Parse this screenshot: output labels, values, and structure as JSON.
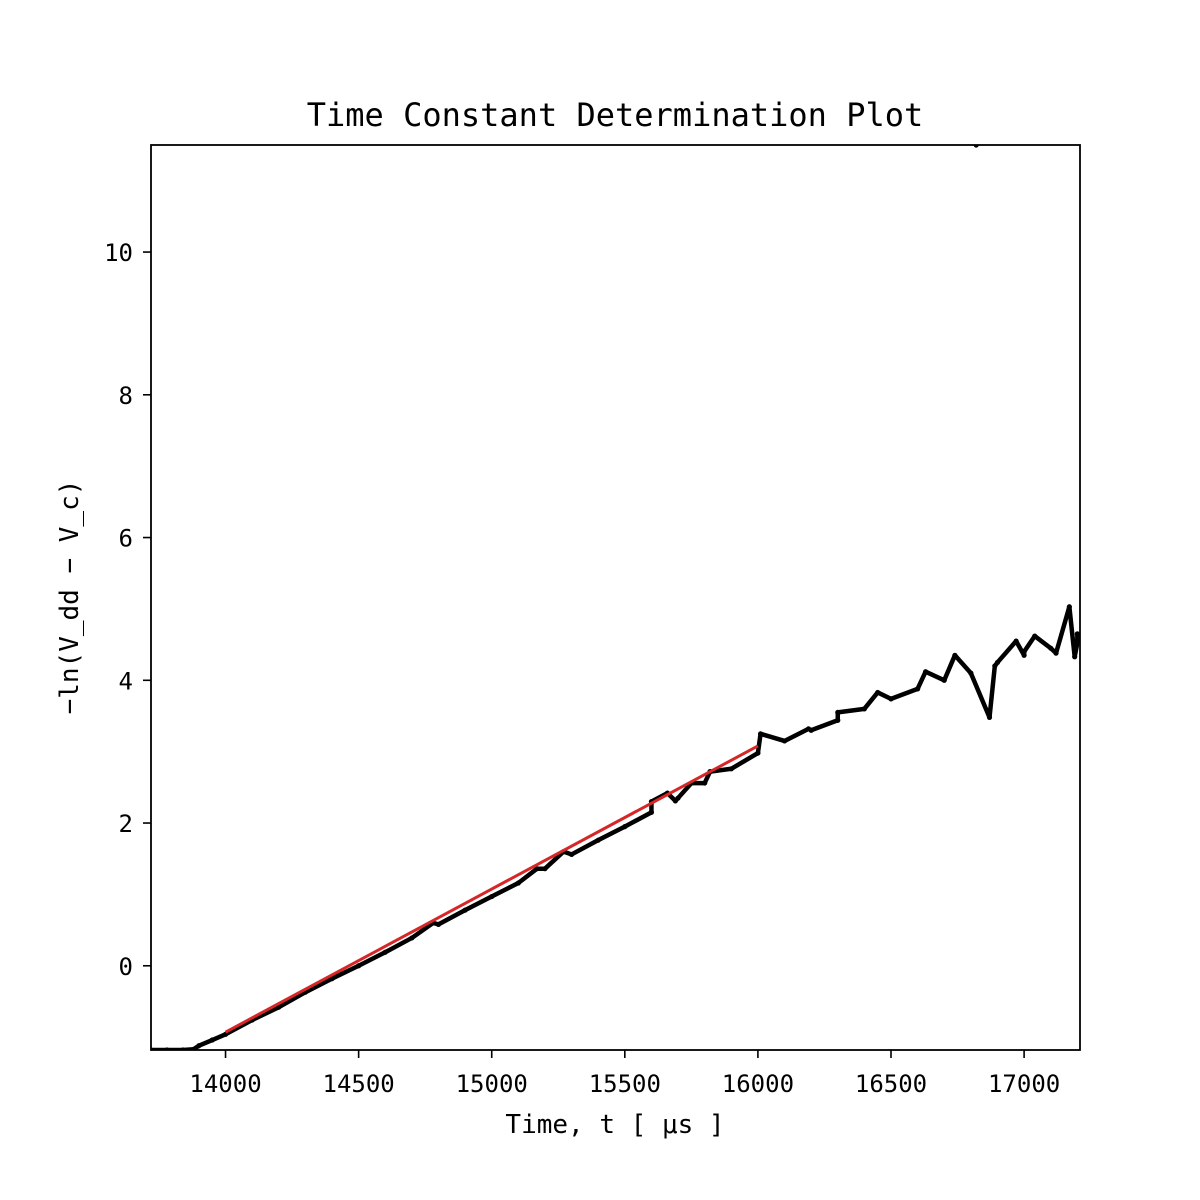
{
  "chart_data": {
    "type": "scatter",
    "title": "Time Constant Determination Plot",
    "xlabel": "Time, t [ μs ]",
    "ylabel": "−ln(V_dd − V_c)",
    "xlim": [
      13720,
      17210
    ],
    "ylim": [
      -1.18,
      11.5
    ],
    "xticks": [
      14000,
      14500,
      15000,
      15500,
      16000,
      16500,
      17000
    ],
    "xtick_labels": [
      "14000",
      "14500",
      "15000",
      "15500",
      "16000",
      "16500",
      "17000"
    ],
    "yticks": [
      0,
      2,
      4,
      6,
      8,
      10
    ],
    "ytick_labels": [
      "0",
      "2",
      "4",
      "6",
      "8",
      "10"
    ],
    "grid": false,
    "legend": "none",
    "series": [
      {
        "kind": "scatter",
        "color": "#000000",
        "points": [
          [
            13720,
            -1.18
          ],
          [
            13780,
            -1.18
          ],
          [
            13840,
            -1.18
          ],
          [
            13880,
            -1.17
          ],
          [
            13900,
            -1.12
          ],
          [
            13950,
            -1.04
          ],
          [
            14000,
            -0.96
          ],
          [
            14100,
            -0.76
          ],
          [
            14200,
            -0.58
          ],
          [
            14300,
            -0.37
          ],
          [
            14400,
            -0.18
          ],
          [
            14500,
            0.0
          ],
          [
            14600,
            0.19
          ],
          [
            14700,
            0.39
          ],
          [
            14800,
            0.58
          ],
          [
            14900,
            0.78
          ],
          [
            15000,
            0.97
          ],
          [
            15100,
            1.16
          ],
          [
            15200,
            1.36
          ],
          [
            15300,
            1.56
          ],
          [
            15400,
            1.76
          ],
          [
            15500,
            1.95
          ],
          [
            15600,
            2.15
          ],
          [
            15700,
            2.35
          ],
          [
            15800,
            2.56
          ],
          [
            15900,
            2.76
          ],
          [
            16000,
            2.98
          ],
          [
            16100,
            3.15
          ],
          [
            16200,
            3.3
          ],
          [
            16300,
            3.44
          ],
          [
            16400,
            3.6
          ],
          [
            16500,
            3.74
          ],
          [
            16600,
            3.88
          ],
          [
            16700,
            4.0
          ],
          [
            16800,
            4.1
          ],
          [
            16900,
            4.25
          ],
          [
            17000,
            4.35
          ],
          [
            17100,
            4.45
          ],
          [
            17200,
            4.52
          ],
          [
            14780,
            0.6
          ],
          [
            15170,
            1.36
          ],
          [
            15270,
            1.6
          ],
          [
            15600,
            2.3
          ],
          [
            15660,
            2.42
          ],
          [
            15690,
            2.31
          ],
          [
            15750,
            2.56
          ],
          [
            15820,
            2.72
          ],
          [
            16010,
            3.25
          ],
          [
            16190,
            3.32
          ],
          [
            16300,
            3.55
          ],
          [
            16450,
            3.83
          ],
          [
            16630,
            4.12
          ],
          [
            16740,
            4.35
          ],
          [
            16820,
            11.5
          ],
          [
            16870,
            3.48
          ],
          [
            16890,
            4.2
          ],
          [
            16970,
            4.55
          ],
          [
            17000,
            4.4
          ],
          [
            17040,
            4.62
          ],
          [
            17120,
            4.38
          ],
          [
            17170,
            5.03
          ],
          [
            17200,
            4.65
          ],
          [
            17190,
            4.33
          ]
        ]
      },
      {
        "kind": "line",
        "color": "#d62728",
        "points": [
          [
            14000,
            -0.93
          ],
          [
            16000,
            3.08
          ]
        ]
      }
    ]
  }
}
